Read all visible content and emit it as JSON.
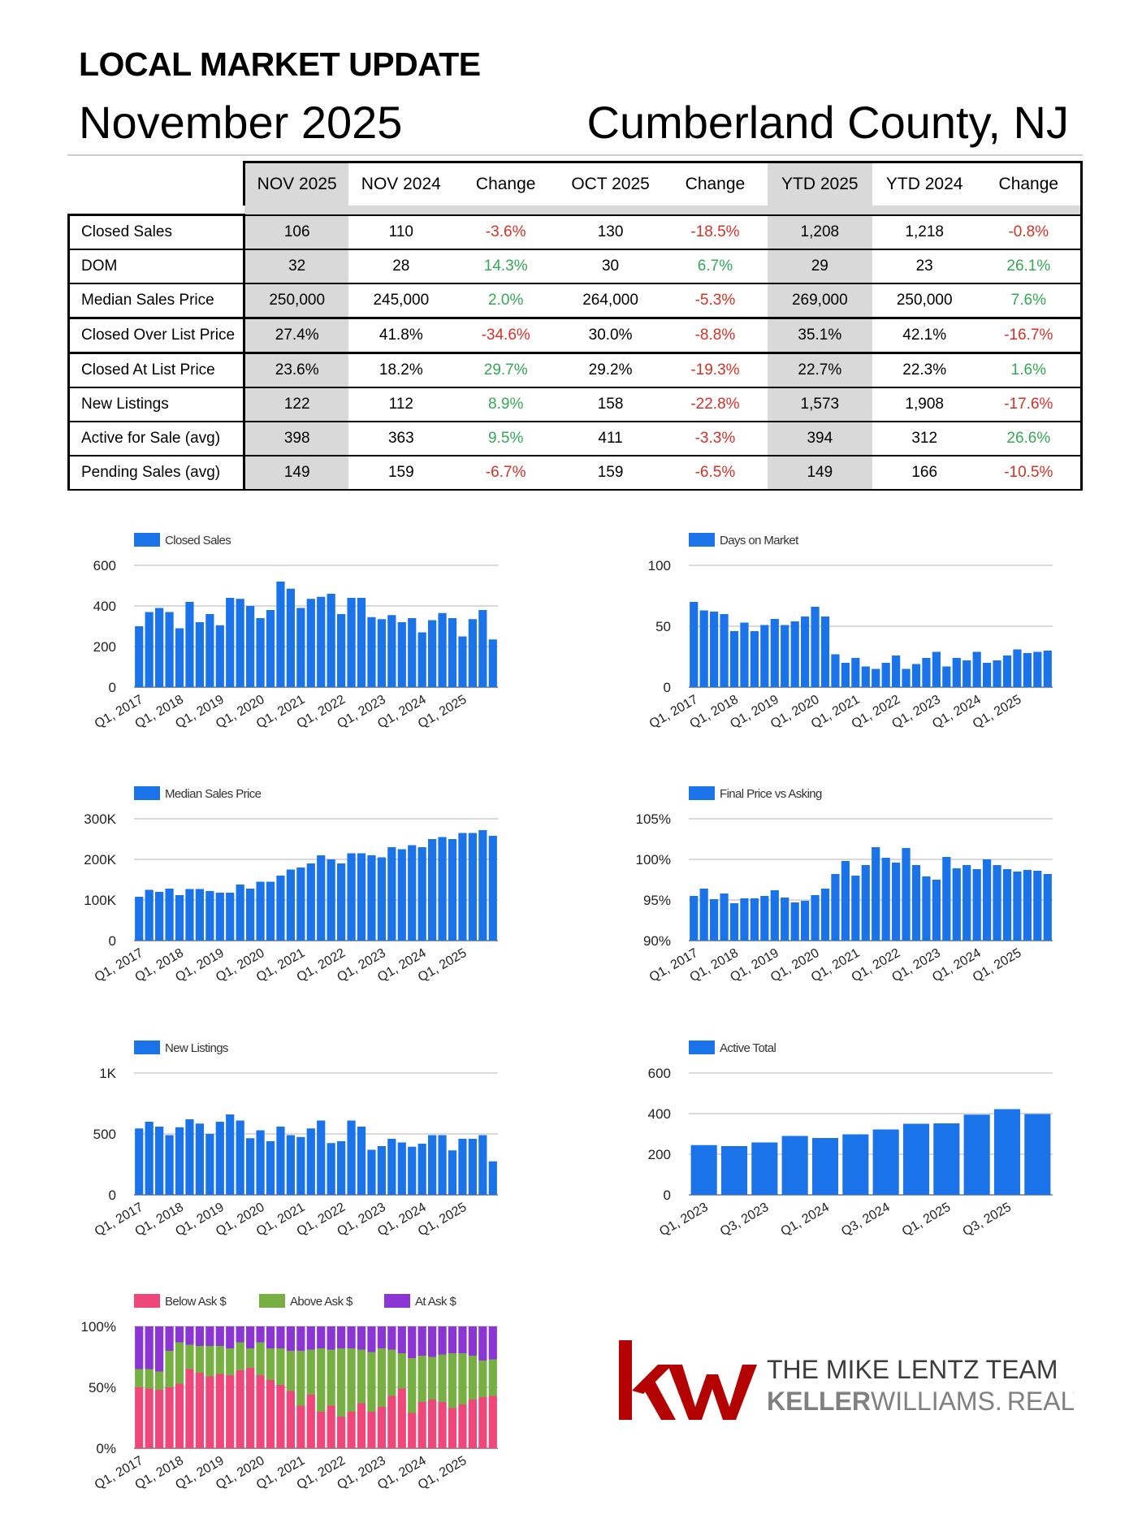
{
  "header": {
    "title": "LOCAL MARKET UPDATE",
    "month": "November 2025",
    "location": "Cumberland County, NJ"
  },
  "table": {
    "columns": [
      "NOV 2025",
      "NOV 2024",
      "Change",
      "OCT 2025",
      "Change",
      "YTD 2025",
      "YTD 2024",
      "Change"
    ],
    "rows": [
      {
        "label": "Closed Sales",
        "cells": [
          "106",
          "110",
          "-3.6%",
          "130",
          "-18.5%",
          "1,208",
          "1,218",
          "-0.8%"
        ]
      },
      {
        "label": "DOM",
        "cells": [
          "32",
          "28",
          "14.3%",
          "30",
          "6.7%",
          "29",
          "23",
          "26.1%"
        ]
      },
      {
        "label": "Median Sales Price",
        "cells": [
          "250,000",
          "245,000",
          "2.0%",
          "264,000",
          "-5.3%",
          "269,000",
          "250,000",
          "7.6%"
        ]
      },
      {
        "label": "Closed Over List Price",
        "cells": [
          "27.4%",
          "41.8%",
          "-34.6%",
          "30.0%",
          "-8.8%",
          "35.1%",
          "42.1%",
          "-16.7%"
        ]
      },
      {
        "label": "Closed At List Price",
        "cells": [
          "23.6%",
          "18.2%",
          "29.7%",
          "29.2%",
          "-19.3%",
          "22.7%",
          "22.3%",
          "1.6%"
        ]
      },
      {
        "label": "New Listings",
        "cells": [
          "122",
          "112",
          "8.9%",
          "158",
          "-22.8%",
          "1,573",
          "1,908",
          "-17.6%"
        ]
      },
      {
        "label": "Active for Sale (avg)",
        "cells": [
          "398",
          "363",
          "9.5%",
          "411",
          "-3.3%",
          "394",
          "312",
          "26.6%"
        ]
      },
      {
        "label": "Pending Sales (avg)",
        "cells": [
          "149",
          "159",
          "-6.7%",
          "159",
          "-6.5%",
          "149",
          "166",
          "-10.5%"
        ]
      }
    ]
  },
  "colors": {
    "bar": "#1a73e8",
    "negative": "#d93025",
    "positive": "#34a853",
    "shade": "#d9d9d9",
    "brand_red": "#b40101"
  },
  "chart_data": [
    {
      "id": "closed-sales",
      "type": "bar",
      "legend": [
        "Closed Sales"
      ],
      "yticks": [
        "600",
        "400",
        "200",
        "0"
      ],
      "ylim": [
        0,
        600
      ],
      "xtick_labels": [
        "Q1, 2017",
        "Q1, 2018",
        "Q1, 2019",
        "Q1, 2020",
        "Q1, 2021",
        "Q1, 2022",
        "Q1, 2023",
        "Q1, 2024",
        "Q1, 2025"
      ],
      "xtick_every": 4,
      "values": [
        300,
        370,
        390,
        370,
        290,
        420,
        320,
        360,
        305,
        440,
        435,
        400,
        340,
        380,
        520,
        485,
        390,
        435,
        445,
        460,
        360,
        440,
        440,
        345,
        335,
        355,
        320,
        340,
        270,
        330,
        365,
        340,
        250,
        335,
        380,
        235
      ]
    },
    {
      "id": "days-on-market",
      "type": "bar",
      "legend": [
        "Days on Market"
      ],
      "yticks": [
        "100",
        "50",
        "0"
      ],
      "ylim": [
        0,
        100
      ],
      "xtick_labels": [
        "Q1, 2017",
        "Q1, 2018",
        "Q1, 2019",
        "Q1, 2020",
        "Q1, 2021",
        "Q1, 2022",
        "Q1, 2023",
        "Q1, 2024",
        "Q1, 2025"
      ],
      "xtick_every": 4,
      "values": [
        70,
        63,
        62,
        60,
        46,
        53,
        46,
        51,
        56,
        51,
        54,
        58,
        66,
        58,
        27,
        20,
        24,
        17,
        15,
        20,
        26,
        15,
        19,
        24,
        29,
        17,
        24,
        22,
        29,
        20,
        22,
        26,
        31,
        28,
        29,
        30
      ]
    },
    {
      "id": "median-sales-price",
      "type": "bar",
      "legend": [
        "Median Sales Price"
      ],
      "yticks": [
        "300K",
        "200K",
        "100K",
        "0"
      ],
      "ylim": [
        0,
        300000
      ],
      "xtick_labels": [
        "Q1, 2017",
        "Q1, 2018",
        "Q1, 2019",
        "Q1, 2020",
        "Q1, 2021",
        "Q1, 2022",
        "Q1, 2023",
        "Q1, 2024",
        "Q1, 2025"
      ],
      "xtick_every": 4,
      "values": [
        108000,
        125000,
        120000,
        128000,
        112000,
        127000,
        127000,
        122000,
        118000,
        118000,
        138000,
        128000,
        145000,
        145000,
        160000,
        175000,
        180000,
        190000,
        210000,
        200000,
        190000,
        215000,
        215000,
        210000,
        205000,
        230000,
        225000,
        235000,
        230000,
        250000,
        255000,
        250000,
        265000,
        265000,
        272000,
        258000
      ]
    },
    {
      "id": "final-price-vs-asking",
      "type": "bar",
      "legend": [
        "Final Price vs Asking"
      ],
      "yticks": [
        "105%",
        "100%",
        "95%",
        "90%"
      ],
      "ylim": [
        90,
        105
      ],
      "xtick_labels": [
        "Q1, 2017",
        "Q1, 2018",
        "Q1, 2019",
        "Q1, 2020",
        "Q1, 2021",
        "Q1, 2022",
        "Q1, 2023",
        "Q1, 2024",
        "Q1, 2025"
      ],
      "xtick_every": 4,
      "values": [
        95.5,
        96.4,
        95.1,
        95.8,
        94.6,
        95.2,
        95.2,
        95.5,
        96.2,
        95.3,
        94.7,
        94.9,
        95.6,
        96.4,
        98.2,
        99.8,
        98.0,
        99.3,
        101.5,
        100.2,
        99.6,
        101.4,
        99.3,
        97.9,
        97.5,
        100.3,
        98.9,
        99.3,
        98.8,
        100.0,
        99.3,
        98.8,
        98.5,
        98.7,
        98.6,
        98.2
      ]
    },
    {
      "id": "new-listings",
      "type": "bar",
      "legend": [
        "New Listings"
      ],
      "yticks": [
        "1K",
        "500",
        "0"
      ],
      "ylim": [
        0,
        1000
      ],
      "xtick_labels": [
        "Q1, 2017",
        "Q1, 2018",
        "Q1, 2019",
        "Q1, 2020",
        "Q1, 2021",
        "Q1, 2022",
        "Q1, 2023",
        "Q1, 2024",
        "Q1, 2025"
      ],
      "xtick_every": 4,
      "values": [
        545,
        600,
        560,
        490,
        555,
        620,
        585,
        500,
        600,
        660,
        610,
        465,
        530,
        440,
        560,
        490,
        475,
        545,
        610,
        425,
        440,
        610,
        560,
        370,
        400,
        460,
        430,
        395,
        420,
        490,
        490,
        365,
        460,
        460,
        490,
        275
      ]
    },
    {
      "id": "active-total",
      "type": "bar",
      "legend": [
        "Active Total"
      ],
      "yticks": [
        "600",
        "400",
        "200",
        "0"
      ],
      "ylim": [
        0,
        600
      ],
      "xtick_labels": [
        "Q1, 2023",
        "Q3, 2023",
        "Q1, 2024",
        "Q3, 2024",
        "Q1, 2025",
        "Q3, 2025"
      ],
      "xtick_every": 2,
      "values": [
        245,
        240,
        258,
        290,
        280,
        298,
        322,
        350,
        352,
        395,
        422,
        398
      ]
    },
    {
      "id": "ask-breakdown",
      "type": "stacked-bar",
      "legend": [
        "Below Ask $",
        "Above Ask $",
        "At Ask $"
      ],
      "series_colors": [
        "#f0477a",
        "#76b043",
        "#8b35d5"
      ],
      "yticks": [
        "100%",
        "50%",
        "0%"
      ],
      "ylim": [
        0,
        100
      ],
      "xtick_labels": [
        "Q1, 2017",
        "Q1, 2018",
        "Q1, 2019",
        "Q1, 2020",
        "Q1, 2021",
        "Q1, 2022",
        "Q1, 2023",
        "Q1, 2024",
        "Q1, 2025"
      ],
      "xtick_every": 4,
      "series": [
        {
          "name": "Below Ask $",
          "values": [
            50,
            49,
            48,
            50,
            53,
            65,
            62,
            59,
            61,
            60,
            64,
            66,
            60,
            56,
            52,
            47,
            35,
            44,
            30,
            35,
            26,
            30,
            37,
            30,
            34,
            43,
            49,
            29,
            38,
            40,
            38,
            33,
            36,
            40,
            42,
            43
          ]
        },
        {
          "name": "Above Ask $",
          "values": [
            15,
            16,
            15,
            30,
            34,
            20,
            22,
            25,
            23,
            22,
            23,
            16,
            27,
            26,
            30,
            33,
            45,
            37,
            52,
            46,
            56,
            52,
            44,
            49,
            48,
            38,
            29,
            45,
            38,
            35,
            39,
            45,
            42,
            36,
            30,
            30
          ]
        },
        {
          "name": "At Ask $",
          "values": [
            35,
            35,
            37,
            20,
            13,
            15,
            16,
            16,
            16,
            18,
            13,
            18,
            13,
            18,
            18,
            20,
            20,
            19,
            18,
            19,
            18,
            18,
            19,
            21,
            18,
            19,
            22,
            26,
            24,
            25,
            23,
            22,
            22,
            24,
            28,
            27
          ]
        }
      ]
    }
  ],
  "logo": {
    "mark": "kw",
    "team": "THE MIKE LENTZ TEAM",
    "brand_bold": "KELLER",
    "brand_light": "WILLIAMS",
    "brand_dot": ".",
    "brand_suffix": "REALTY"
  }
}
